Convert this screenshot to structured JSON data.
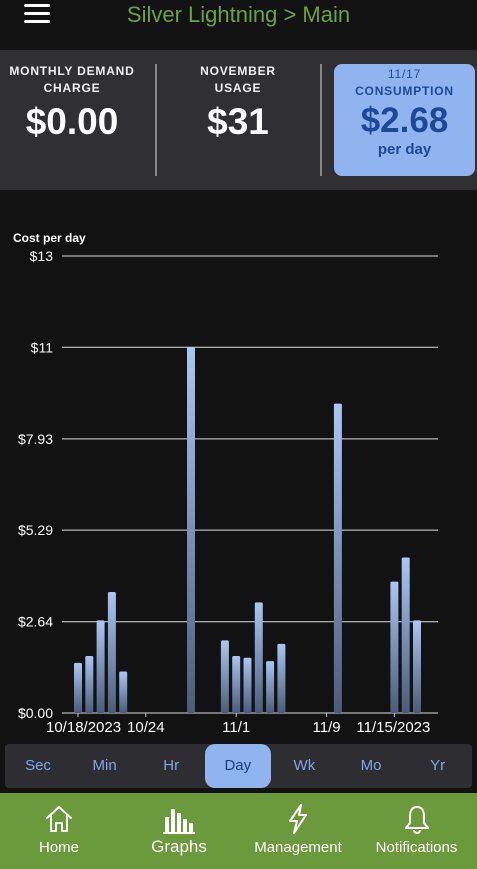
{
  "header": {
    "title": "Silver Lightning > Main"
  },
  "summary": {
    "monthly_demand": {
      "label_line1": "MONTHLY DEMAND",
      "label_line2": "CHARGE",
      "value": "$0.00"
    },
    "usage": {
      "label_line1": "NOVEMBER",
      "label_line2": "USAGE",
      "value": "$31"
    },
    "consumption": {
      "date": "11/17",
      "label": "CONSUMPTION",
      "value": "$2.68",
      "sub": "per day"
    }
  },
  "chart_data": {
    "type": "bar",
    "ylabel": "Cost per day",
    "y_ticks": [
      "$13",
      "$11",
      "$7.93",
      "$5.29",
      "$2.64",
      "$0.00"
    ],
    "y_tick_values": [
      13.22,
      10.58,
      7.93,
      5.29,
      2.64,
      0
    ],
    "ylim": [
      0,
      13.22
    ],
    "x_tick_labels": [
      "10/18/2023",
      "10/24",
      "11/1",
      "11/9",
      "11/15/2023"
    ],
    "x_tick_dates": [
      "10/18",
      "10/24",
      "11/1",
      "11/9",
      "11/15"
    ],
    "categories": [
      "10/18",
      "10/19",
      "10/20",
      "10/21",
      "10/22",
      "10/23",
      "10/24",
      "10/25",
      "10/26",
      "10/27",
      "10/28",
      "10/29",
      "10/30",
      "10/31",
      "11/1",
      "11/2",
      "11/3",
      "11/4",
      "11/5",
      "11/6",
      "11/7",
      "11/8",
      "11/9",
      "11/10",
      "11/11",
      "11/12",
      "11/13",
      "11/14",
      "11/15",
      "11/16",
      "11/17"
    ],
    "values": [
      1.45,
      1.65,
      2.68,
      3.5,
      1.2,
      0,
      0,
      0,
      0,
      0,
      10.58,
      0,
      0,
      2.1,
      1.65,
      1.6,
      3.2,
      1.5,
      2.0,
      0,
      0,
      0,
      0,
      8.95,
      0,
      0,
      0,
      0,
      3.8,
      4.5,
      2.68
    ],
    "grid": true
  },
  "ranges": [
    "Sec",
    "Min",
    "Hr",
    "Day",
    "Wk",
    "Mo",
    "Yr"
  ],
  "active_range": "Day",
  "nav": [
    {
      "label": "Home",
      "icon": "home-icon"
    },
    {
      "label": "Graphs",
      "icon": "bar-chart-icon"
    },
    {
      "label": "Management",
      "icon": "lightning-icon"
    },
    {
      "label": "Notifications",
      "icon": "bell-icon"
    }
  ],
  "colors": {
    "accent_green": "#6aa343",
    "accent_blue": "#8fb4f0",
    "nav_bg": "#6a9a3c"
  }
}
